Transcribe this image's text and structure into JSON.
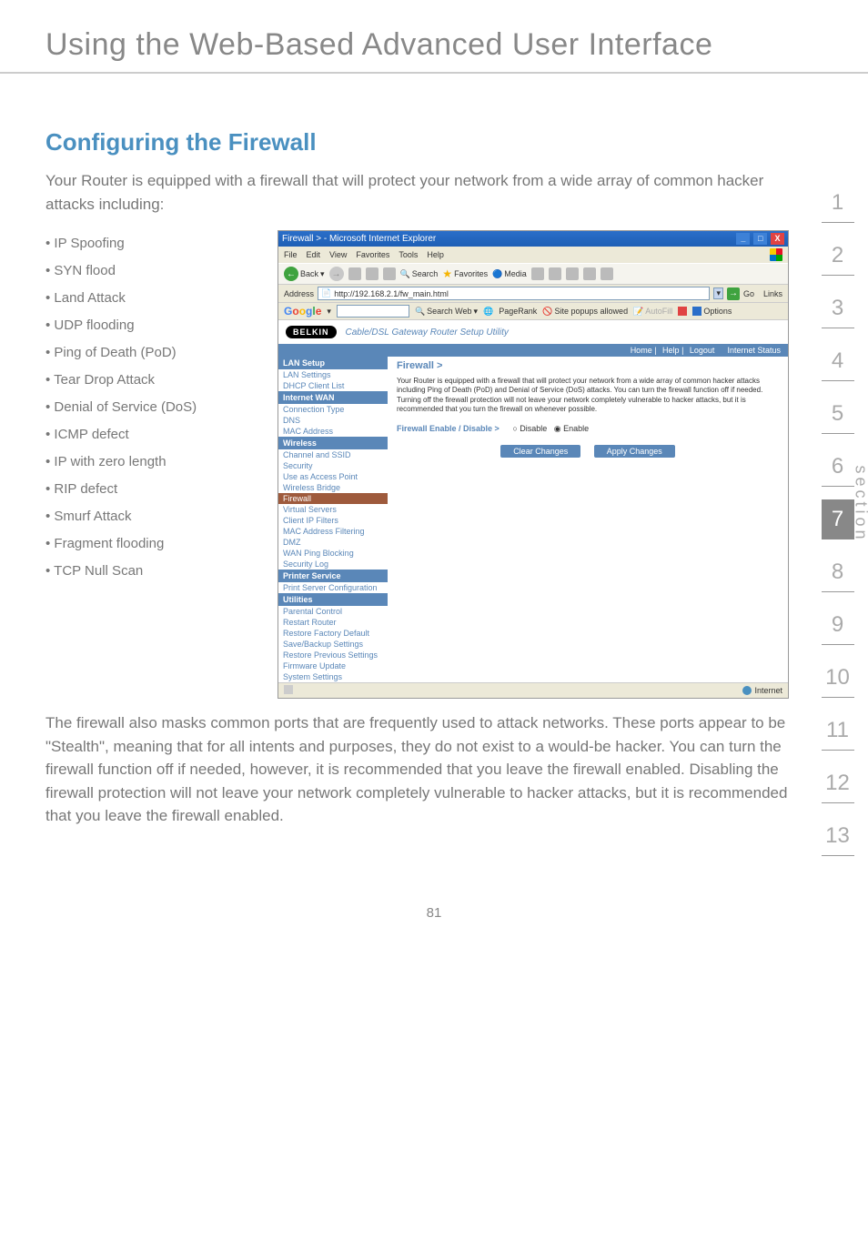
{
  "page_title": "Using the Web-Based Advanced User Interface",
  "section_heading": "Configuring the Firewall",
  "intro": "Your Router is equipped with a firewall that will protect your network from a wide array of common hacker attacks including:",
  "attacks": [
    "IP Spoofing",
    "SYN flood",
    "Land Attack",
    "UDP flooding",
    "Ping of Death (PoD)",
    "Tear Drop Attack",
    "Denial of Service (DoS)",
    "ICMP defect",
    "IP with zero length",
    "RIP defect",
    "Smurf Attack",
    "Fragment flooding",
    "TCP Null Scan"
  ],
  "paragraph": "The firewall also masks common ports that are frequently used to attack networks. These ports appear to be \"Stealth\", meaning that for all intents and purposes, they do not exist to a would-be hacker. You can turn the firewall function off if needed, however, it is recommended that you leave the firewall enabled. Disabling the firewall protection will not leave your network completely vulnerable to hacker attacks, but it is recommended that you leave the firewall enabled.",
  "tabs": [
    "1",
    "2",
    "3",
    "4",
    "5",
    "6",
    "7",
    "8",
    "9",
    "10",
    "11",
    "12",
    "13"
  ],
  "active_tab_index": 6,
  "section_label": "section",
  "page_number": "81",
  "ie": {
    "title": "Firewall > - Microsoft Internet Explorer",
    "menus": [
      "File",
      "Edit",
      "View",
      "Favorites",
      "Tools",
      "Help"
    ],
    "toolbar": {
      "back": "Back",
      "search": "Search",
      "favorites": "Favorites",
      "media": "Media"
    },
    "address_label": "Address",
    "url": "http://192.168.2.1/fw_main.html",
    "go": "Go",
    "links": "Links",
    "google": {
      "search_web": "Search Web",
      "pagerank": "PageRank",
      "popups": "Site popups allowed",
      "autofill": "AutoFill",
      "options": "Options"
    },
    "status_zone": "Internet"
  },
  "router": {
    "brand": "BELKIN",
    "title": "Cable/DSL Gateway Router Setup Utility",
    "bar_items": [
      "Home",
      "Help",
      "Logout",
      "Internet Status"
    ],
    "nav": [
      {
        "type": "hdr",
        "label": "LAN Setup"
      },
      {
        "type": "item",
        "label": "LAN Settings"
      },
      {
        "type": "item",
        "label": "DHCP Client List"
      },
      {
        "type": "hdr",
        "label": "Internet WAN"
      },
      {
        "type": "item",
        "label": "Connection Type"
      },
      {
        "type": "item",
        "label": "DNS"
      },
      {
        "type": "item",
        "label": "MAC Address"
      },
      {
        "type": "hdr",
        "label": "Wireless"
      },
      {
        "type": "item",
        "label": "Channel and SSID"
      },
      {
        "type": "item",
        "label": "Security"
      },
      {
        "type": "item",
        "label": "Use as Access Point"
      },
      {
        "type": "item",
        "label": "Wireless Bridge"
      },
      {
        "type": "item",
        "label": "Firewall",
        "active": true
      },
      {
        "type": "item",
        "label": "Virtual Servers"
      },
      {
        "type": "item",
        "label": "Client IP Filters"
      },
      {
        "type": "item",
        "label": "MAC Address Filtering"
      },
      {
        "type": "item",
        "label": "DMZ"
      },
      {
        "type": "item",
        "label": "WAN Ping Blocking"
      },
      {
        "type": "item",
        "label": "Security Log"
      },
      {
        "type": "hdr",
        "label": "Printer Service"
      },
      {
        "type": "item",
        "label": "Print Server Configuration"
      },
      {
        "type": "hdr",
        "label": "Utilities"
      },
      {
        "type": "item",
        "label": "Parental Control"
      },
      {
        "type": "item",
        "label": "Restart Router"
      },
      {
        "type": "item",
        "label": "Restore Factory Default"
      },
      {
        "type": "item",
        "label": "Save/Backup Settings"
      },
      {
        "type": "item",
        "label": "Restore Previous Settings"
      },
      {
        "type": "item",
        "label": "Firmware Update"
      },
      {
        "type": "item",
        "label": "System Settings"
      }
    ],
    "crumb": "Firewall >",
    "desc": "Your Router is equipped with a firewall that will protect your network from a wide array of common hacker attacks including Ping of Death (PoD) and Denial of Service (DoS) attacks. You can turn the firewall function off if needed. Turning off the firewall protection will not leave your network completely vulnerable to hacker attacks, but it is recommended that you turn the firewall on whenever possible.",
    "setting_label": "Firewall Enable / Disable >",
    "radio_disable": "Disable",
    "radio_enable": "Enable",
    "btn_clear": "Clear Changes",
    "btn_apply": "Apply Changes"
  },
  "colors": {
    "heading": "#4a90c0",
    "body_text": "#777777",
    "tab_active_bg": "#888888",
    "router_accent": "#5a87b8"
  }
}
